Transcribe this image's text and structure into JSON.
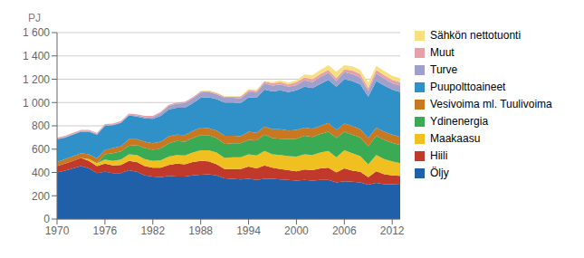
{
  "chart_data": {
    "type": "area",
    "stacked": true,
    "ylabel": "PJ",
    "x": [
      1970,
      1971,
      1972,
      1973,
      1974,
      1975,
      1976,
      1977,
      1978,
      1979,
      1980,
      1981,
      1982,
      1983,
      1984,
      1985,
      1986,
      1987,
      1988,
      1989,
      1990,
      1991,
      1992,
      1993,
      1994,
      1995,
      1996,
      1997,
      1998,
      1999,
      2000,
      2001,
      2002,
      2003,
      2004,
      2005,
      2006,
      2007,
      2008,
      2009,
      2010,
      2011,
      2012,
      2013
    ],
    "series": [
      {
        "name": "Öljy",
        "color": "#2060a8",
        "values": [
          400,
          415,
          435,
          455,
          435,
          395,
          405,
          395,
          395,
          420,
          405,
          375,
          365,
          360,
          370,
          365,
          365,
          375,
          380,
          385,
          375,
          350,
          345,
          340,
          345,
          335,
          345,
          345,
          340,
          335,
          330,
          335,
          330,
          335,
          335,
          315,
          325,
          320,
          315,
          295,
          310,
          300,
          300,
          295
        ]
      },
      {
        "name": "Hiili",
        "color": "#c0392b",
        "values": [
          55,
          60,
          65,
          70,
          65,
          60,
          70,
          65,
          70,
          80,
          85,
          80,
          75,
          80,
          95,
          110,
          105,
          115,
          120,
          110,
          95,
          80,
          85,
          90,
          105,
          100,
          115,
          95,
          90,
          85,
          80,
          90,
          90,
          100,
          105,
          85,
          110,
          95,
          90,
          65,
          100,
          85,
          75,
          75
        ]
      },
      {
        "name": "Maakaasu",
        "color": "#f0c020",
        "values": [
          0,
          0,
          0,
          0,
          15,
          25,
          35,
          40,
          45,
          55,
          60,
          60,
          60,
          65,
          70,
          75,
          75,
          80,
          90,
          95,
          100,
          95,
          100,
          100,
          105,
          110,
          125,
          115,
          120,
          120,
          125,
          130,
          130,
          135,
          145,
          130,
          155,
          150,
          135,
          110,
          140,
          130,
          120,
          110
        ]
      },
      {
        "name": "Ydinenergia",
        "color": "#3aaa55",
        "values": [
          0,
          0,
          0,
          0,
          0,
          0,
          45,
          65,
          70,
          75,
          85,
          95,
          95,
          100,
          115,
          120,
          120,
          125,
          130,
          130,
          125,
          120,
          120,
          120,
          125,
          130,
          140,
          140,
          140,
          145,
          155,
          160,
          155,
          160,
          165,
          165,
          160,
          160,
          160,
          155,
          165,
          165,
          160,
          155
        ]
      },
      {
        "name": "Vesivoima ml. Tuulivoima",
        "color": "#c87820",
        "values": [
          35,
          40,
          40,
          40,
          40,
          40,
          40,
          45,
          45,
          55,
          50,
          55,
          55,
          60,
          60,
          55,
          55,
          60,
          65,
          60,
          65,
          70,
          65,
          60,
          70,
          65,
          70,
          75,
          80,
          75,
          75,
          70,
          70,
          70,
          75,
          70,
          70,
          75,
          70,
          70,
          70,
          70,
          70,
          70
        ]
      },
      {
        "name": "Puupolttoaineet",
        "color": "#3090c8",
        "values": [
          195,
          185,
          185,
          185,
          195,
          205,
          205,
          195,
          200,
          205,
          195,
          200,
          210,
          220,
          230,
          230,
          235,
          240,
          255,
          265,
          270,
          285,
          285,
          285,
          295,
          300,
          315,
          325,
          335,
          330,
          340,
          350,
          350,
          360,
          370,
          370,
          380,
          385,
          385,
          355,
          400,
          395,
          385,
          385
        ]
      },
      {
        "name": "Turve",
        "color": "#a0a0cc",
        "values": [
          5,
          5,
          5,
          5,
          5,
          5,
          5,
          5,
          5,
          5,
          10,
          10,
          15,
          25,
          30,
          35,
          40,
          40,
          45,
          45,
          40,
          40,
          40,
          40,
          45,
          45,
          55,
          50,
          50,
          45,
          45,
          55,
          50,
          60,
          60,
          50,
          60,
          60,
          60,
          50,
          65,
          60,
          55,
          55
        ]
      },
      {
        "name": "Muut",
        "color": "#e8a0a8",
        "values": [
          10,
          10,
          10,
          10,
          10,
          10,
          10,
          10,
          10,
          10,
          10,
          10,
          10,
          10,
          10,
          10,
          10,
          10,
          10,
          10,
          10,
          10,
          10,
          15,
          15,
          15,
          15,
          20,
          20,
          20,
          25,
          25,
          25,
          25,
          25,
          25,
          25,
          30,
          30,
          25,
          30,
          30,
          30,
          30
        ]
      },
      {
        "name": "Sähkön nettotuonti",
        "color": "#f8e080",
        "values": [
          0,
          0,
          0,
          0,
          0,
          0,
          0,
          0,
          0,
          0,
          0,
          0,
          0,
          0,
          0,
          0,
          0,
          0,
          5,
          5,
          5,
          5,
          5,
          5,
          10,
          10,
          5,
          10,
          15,
          15,
          15,
          25,
          35,
          35,
          40,
          55,
          35,
          35,
          35,
          45,
          35,
          35,
          35,
          35
        ]
      }
    ],
    "xlim": [
      1970,
      2013
    ],
    "xticks": [
      1970,
      1976,
      1982,
      1988,
      1994,
      2000,
      2006,
      2012
    ],
    "ylim": [
      0,
      1600
    ],
    "yticks": [
      0,
      200,
      400,
      600,
      800,
      {
        "value": 1000,
        "label": "1 000"
      },
      {
        "value": 1200,
        "label": "1 200"
      },
      {
        "value": 1400,
        "label": "1 400"
      },
      {
        "value": 1600,
        "label": "1 600"
      }
    ],
    "grid": true,
    "legend": "right"
  }
}
